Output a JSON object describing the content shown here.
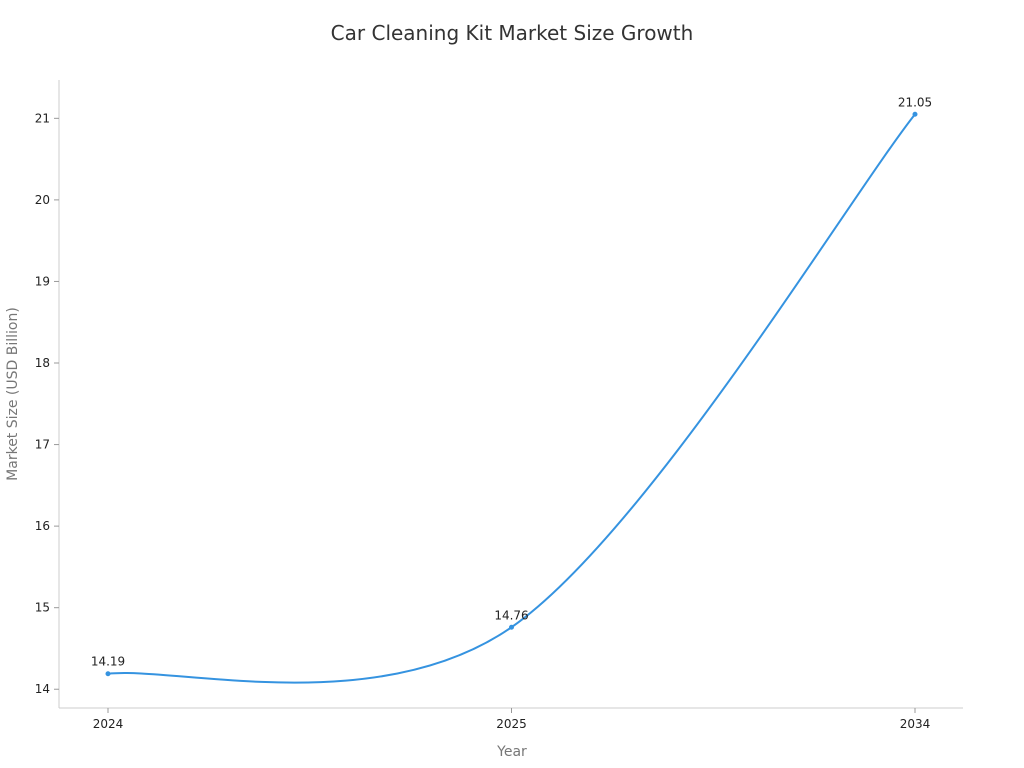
{
  "chart_data": {
    "type": "line",
    "title": "Car Cleaning Kit Market Size Growth",
    "xlabel": "Year",
    "ylabel": "Market Size (USD Billion)",
    "categories": [
      "2024",
      "2025",
      "2034"
    ],
    "series": [
      {
        "values": [
          14.19,
          14.76,
          21.05
        ],
        "color": "#3593e0"
      }
    ],
    "data_labels": [
      "14.19",
      "14.76",
      "21.05"
    ],
    "ylim": [
      13.77,
      21.47
    ],
    "yticks": [
      14,
      15,
      16,
      17,
      18,
      19,
      20,
      21
    ],
    "grid": false,
    "smooth": true,
    "markers": true
  }
}
